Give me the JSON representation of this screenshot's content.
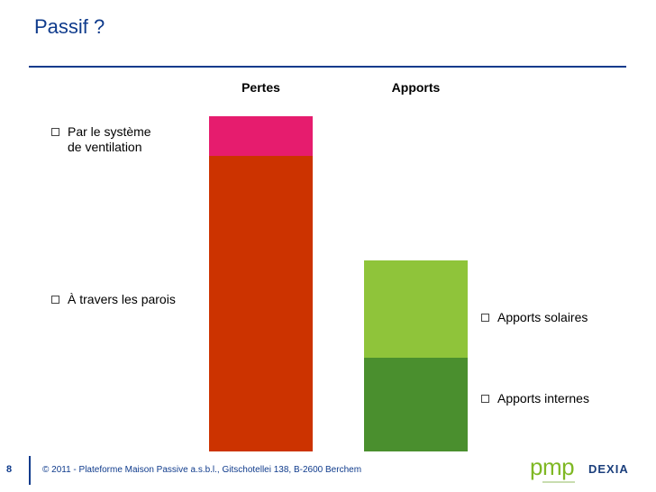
{
  "slide": {
    "title": "Passif ?",
    "page_number": "8",
    "copyright": "© 2011 - Plateforme Maison Passive a.s.b.l., Gitschotellei 138, B-2600 Berchem"
  },
  "logos": {
    "pmp": "pmp",
    "dexia": "DEXIA"
  },
  "bullets": {
    "ventilation": [
      "Par le système",
      "de ventilation"
    ],
    "parois": "À travers les parois",
    "solaires": "Apports solaires",
    "internes": "Apports internes"
  },
  "colors": {
    "title_blue": "#0f3b8c",
    "ventilation": "#e61c6e",
    "parois": "#cc3300",
    "solaires": "#8fc43a",
    "internes": "#4a8f2e"
  },
  "chart_data": {
    "type": "bar",
    "stacked": true,
    "categories": [
      "Pertes",
      "Apports"
    ],
    "series": [
      {
        "values": [
          82,
          26
        ]
      },
      {
        "values": [
          11,
          27
        ]
      }
    ],
    "ylim": [
      0,
      100
    ],
    "grid": false,
    "legend": "none"
  }
}
